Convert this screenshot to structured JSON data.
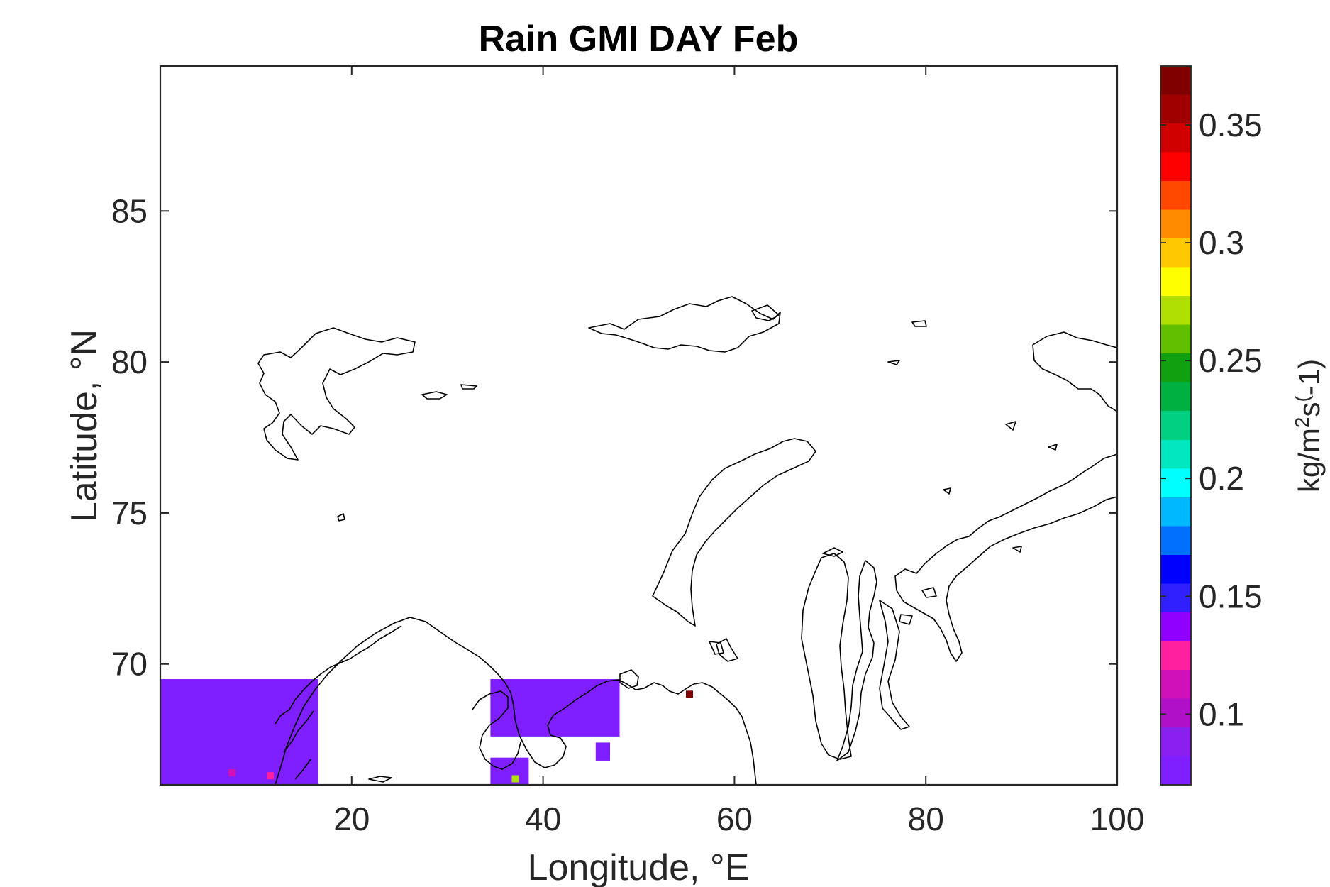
{
  "chart_data": {
    "type": "heatmap",
    "title": "Rain GMI DAY Feb",
    "xlabel": "Longitude, °E",
    "ylabel": "Latitude, °N",
    "xlim": [
      0,
      100
    ],
    "ylim": [
      66,
      89.8
    ],
    "xticks": [
      20,
      40,
      60,
      80,
      100
    ],
    "xticklabels": [
      "20",
      "40",
      "60",
      "80",
      "100"
    ],
    "yticks": [
      70,
      75,
      80,
      85
    ],
    "yticklabels": [
      "70",
      "75",
      "80",
      "85"
    ],
    "colorbar": {
      "label_prefix": "kg/m",
      "label_sup1": "2",
      "label_mid": "s",
      "label_sup2": "(",
      "label_suffix": "-1)",
      "range": [
        0.07,
        0.375
      ],
      "ticks": [
        0.1,
        0.15,
        0.2,
        0.25,
        0.3,
        0.35
      ],
      "ticklabels": [
        "0.1",
        "0.15",
        "0.2",
        "0.25",
        "0.3",
        "0.35"
      ],
      "colormap": [
        "#7f1fff",
        "#8a1fef",
        "#b010c8",
        "#d010b8",
        "#ff20a0",
        "#9000ff",
        "#3020ff",
        "#0000ff",
        "#0070ff",
        "#00b8ff",
        "#00ffff",
        "#00e8c0",
        "#00d080",
        "#00b040",
        "#10a010",
        "#60c000",
        "#b0e000",
        "#ffff00",
        "#ffc800",
        "#ff8c00",
        "#ff4800",
        "#ff0000",
        "#d00000",
        "#a00000",
        "#800000"
      ]
    },
    "regions": [
      {
        "lon": [
          0,
          16.5
        ],
        "lat": [
          66,
          69.5
        ],
        "value": 0.075
      },
      {
        "lon": [
          34.5,
          48
        ],
        "lat": [
          67.6,
          69.5
        ],
        "value": 0.075
      },
      {
        "lon": [
          34.5,
          38.5
        ],
        "lat": [
          66,
          66.9
        ],
        "value": 0.075
      },
      {
        "lon": [
          45.5,
          47
        ],
        "lat": [
          66.8,
          67.4
        ],
        "value": 0.075
      }
    ],
    "points": [
      {
        "lon": 55.3,
        "lat": 69.0,
        "value": 0.375
      },
      {
        "lon": 37.1,
        "lat": 66.2,
        "value": 0.27
      },
      {
        "lon": 11.5,
        "lat": 66.3,
        "value": 0.12
      },
      {
        "lon": 7.5,
        "lat": 66.4,
        "value": 0.11
      }
    ]
  }
}
